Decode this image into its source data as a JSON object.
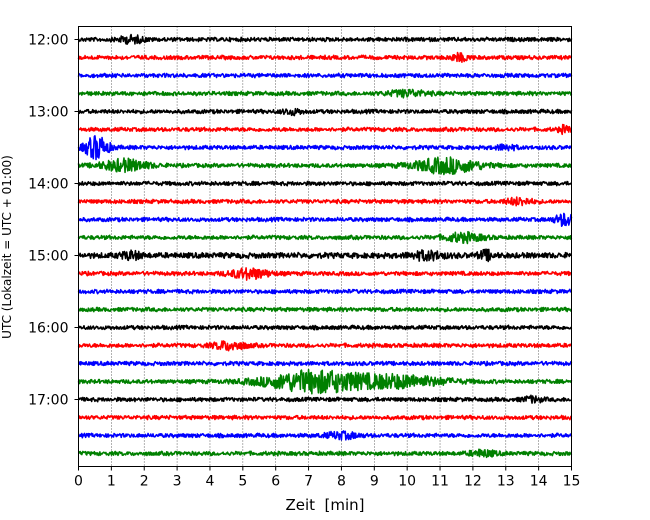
{
  "chart_data": {
    "type": "line",
    "xlabel": "Zeit  [min]",
    "ylabel": "UTC (Lokalzeit = UTC + 01:00)",
    "xlim": [
      0,
      15
    ],
    "x_ticks": [
      "0",
      "1",
      "2",
      "3",
      "4",
      "5",
      "6",
      "7",
      "8",
      "9",
      "10",
      "11",
      "12",
      "13",
      "14",
      "15"
    ],
    "y_ticks": [
      "12:00",
      "13:00",
      "14:00",
      "15:00",
      "16:00",
      "17:00"
    ],
    "grid": "vertical-dotted",
    "color_cycle": [
      "#000000",
      "#ff0000",
      "#0000ff",
      "#008000"
    ],
    "traces": [
      {
        "start": "12:00",
        "amplitude": 1.0,
        "events": [
          {
            "t": 1.6,
            "a": 2.0,
            "w": 0.4
          }
        ]
      },
      {
        "start": "12:15",
        "amplitude": 1.0,
        "events": [
          {
            "t": 11.6,
            "a": 2.0,
            "w": 0.3
          }
        ]
      },
      {
        "start": "12:30",
        "amplitude": 1.0,
        "events": []
      },
      {
        "start": "12:45",
        "amplitude": 1.0,
        "events": [
          {
            "t": 10.0,
            "a": 1.8,
            "w": 0.6
          }
        ]
      },
      {
        "start": "13:00",
        "amplitude": 1.0,
        "events": [
          {
            "t": 6.5,
            "a": 1.5,
            "w": 0.3
          }
        ]
      },
      {
        "start": "13:15",
        "amplitude": 1.0,
        "events": [
          {
            "t": 14.8,
            "a": 2.0,
            "w": 0.2
          }
        ]
      },
      {
        "start": "13:30",
        "amplitude": 1.0,
        "events": [
          {
            "t": 0.55,
            "a": 7.0,
            "w": 0.35
          },
          {
            "t": 13.0,
            "a": 1.5,
            "w": 0.3
          }
        ]
      },
      {
        "start": "13:45",
        "amplitude": 1.0,
        "events": [
          {
            "t": 1.4,
            "a": 3.5,
            "w": 0.7
          },
          {
            "t": 11.2,
            "a": 4.5,
            "w": 1.0
          }
        ]
      },
      {
        "start": "14:00",
        "amplitude": 1.0,
        "events": []
      },
      {
        "start": "14:15",
        "amplitude": 1.0,
        "events": [
          {
            "t": 13.4,
            "a": 2.0,
            "w": 0.4
          }
        ]
      },
      {
        "start": "14:30",
        "amplitude": 1.0,
        "events": [
          {
            "t": 14.8,
            "a": 3.5,
            "w": 0.3
          }
        ]
      },
      {
        "start": "14:45",
        "amplitude": 1.0,
        "events": [
          {
            "t": 11.7,
            "a": 2.5,
            "w": 0.6
          }
        ]
      },
      {
        "start": "15:00",
        "amplitude": 1.4,
        "events": [
          {
            "t": 1.6,
            "a": 2.0,
            "w": 0.3
          },
          {
            "t": 10.6,
            "a": 2.2,
            "w": 0.5
          },
          {
            "t": 12.4,
            "a": 2.6,
            "w": 0.2
          }
        ]
      },
      {
        "start": "15:15",
        "amplitude": 1.0,
        "events": [
          {
            "t": 5.2,
            "a": 3.0,
            "w": 0.6
          }
        ]
      },
      {
        "start": "15:30",
        "amplitude": 1.0,
        "events": []
      },
      {
        "start": "15:45",
        "amplitude": 1.0,
        "events": []
      },
      {
        "start": "16:00",
        "amplitude": 1.0,
        "events": []
      },
      {
        "start": "16:15",
        "amplitude": 1.0,
        "events": [
          {
            "t": 4.6,
            "a": 2.5,
            "w": 0.5
          }
        ]
      },
      {
        "start": "16:30",
        "amplitude": 1.0,
        "events": []
      },
      {
        "start": "16:45",
        "amplitude": 1.0,
        "events": [
          {
            "t": 7.2,
            "a": 6.5,
            "w": 1.5
          },
          {
            "t": 9.8,
            "a": 3.5,
            "w": 1.4
          }
        ]
      },
      {
        "start": "17:00",
        "amplitude": 1.0,
        "events": [
          {
            "t": 13.8,
            "a": 1.5,
            "w": 0.3
          }
        ]
      },
      {
        "start": "17:15",
        "amplitude": 1.0,
        "events": []
      },
      {
        "start": "17:30",
        "amplitude": 1.0,
        "events": [
          {
            "t": 8.0,
            "a": 1.8,
            "w": 0.5
          }
        ]
      },
      {
        "start": "17:45",
        "amplitude": 1.0,
        "events": [
          {
            "t": 12.3,
            "a": 1.8,
            "w": 0.4
          }
        ]
      }
    ]
  }
}
